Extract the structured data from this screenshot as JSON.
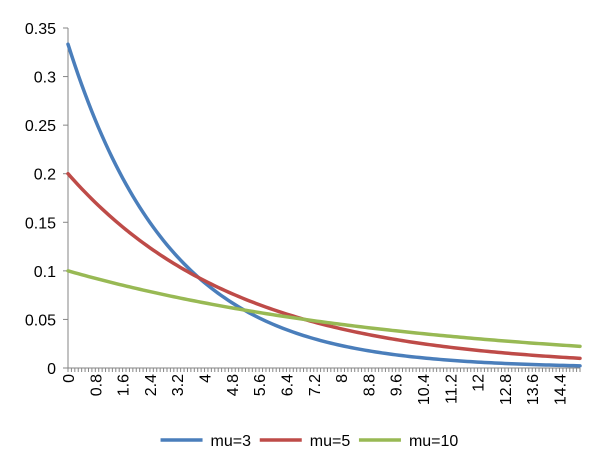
{
  "chart_data": {
    "type": "line",
    "title": "",
    "xlabel": "",
    "ylabel": "",
    "x_min": 0,
    "x_max": 15,
    "x_step": 0.1,
    "xlim": [
      0,
      15
    ],
    "ylim": [
      0,
      0.35
    ],
    "y_ticks": [
      "0",
      "0.05",
      "0.1",
      "0.15",
      "0.2",
      "0.25",
      "0.3",
      "0.35"
    ],
    "x_ticks": [
      "0",
      "0.8",
      "1.6",
      "2.4",
      "3.2",
      "4",
      "4.8",
      "5.6",
      "6.4",
      "7.2",
      "8",
      "8.8",
      "9.6",
      "10.4",
      "11.2",
      "12",
      "12.8",
      "13.6",
      "14.4"
    ],
    "legend_position": "bottom",
    "grid": false,
    "series": [
      {
        "name": "mu=3",
        "mu": 3,
        "color": "#4a7ebb"
      },
      {
        "name": "mu=5",
        "mu": 5,
        "color": "#be4b48"
      },
      {
        "name": "mu=10",
        "mu": 10,
        "color": "#98b954"
      }
    ],
    "function": "exponential density: y = (1/mu) * exp(-x/mu)"
  }
}
